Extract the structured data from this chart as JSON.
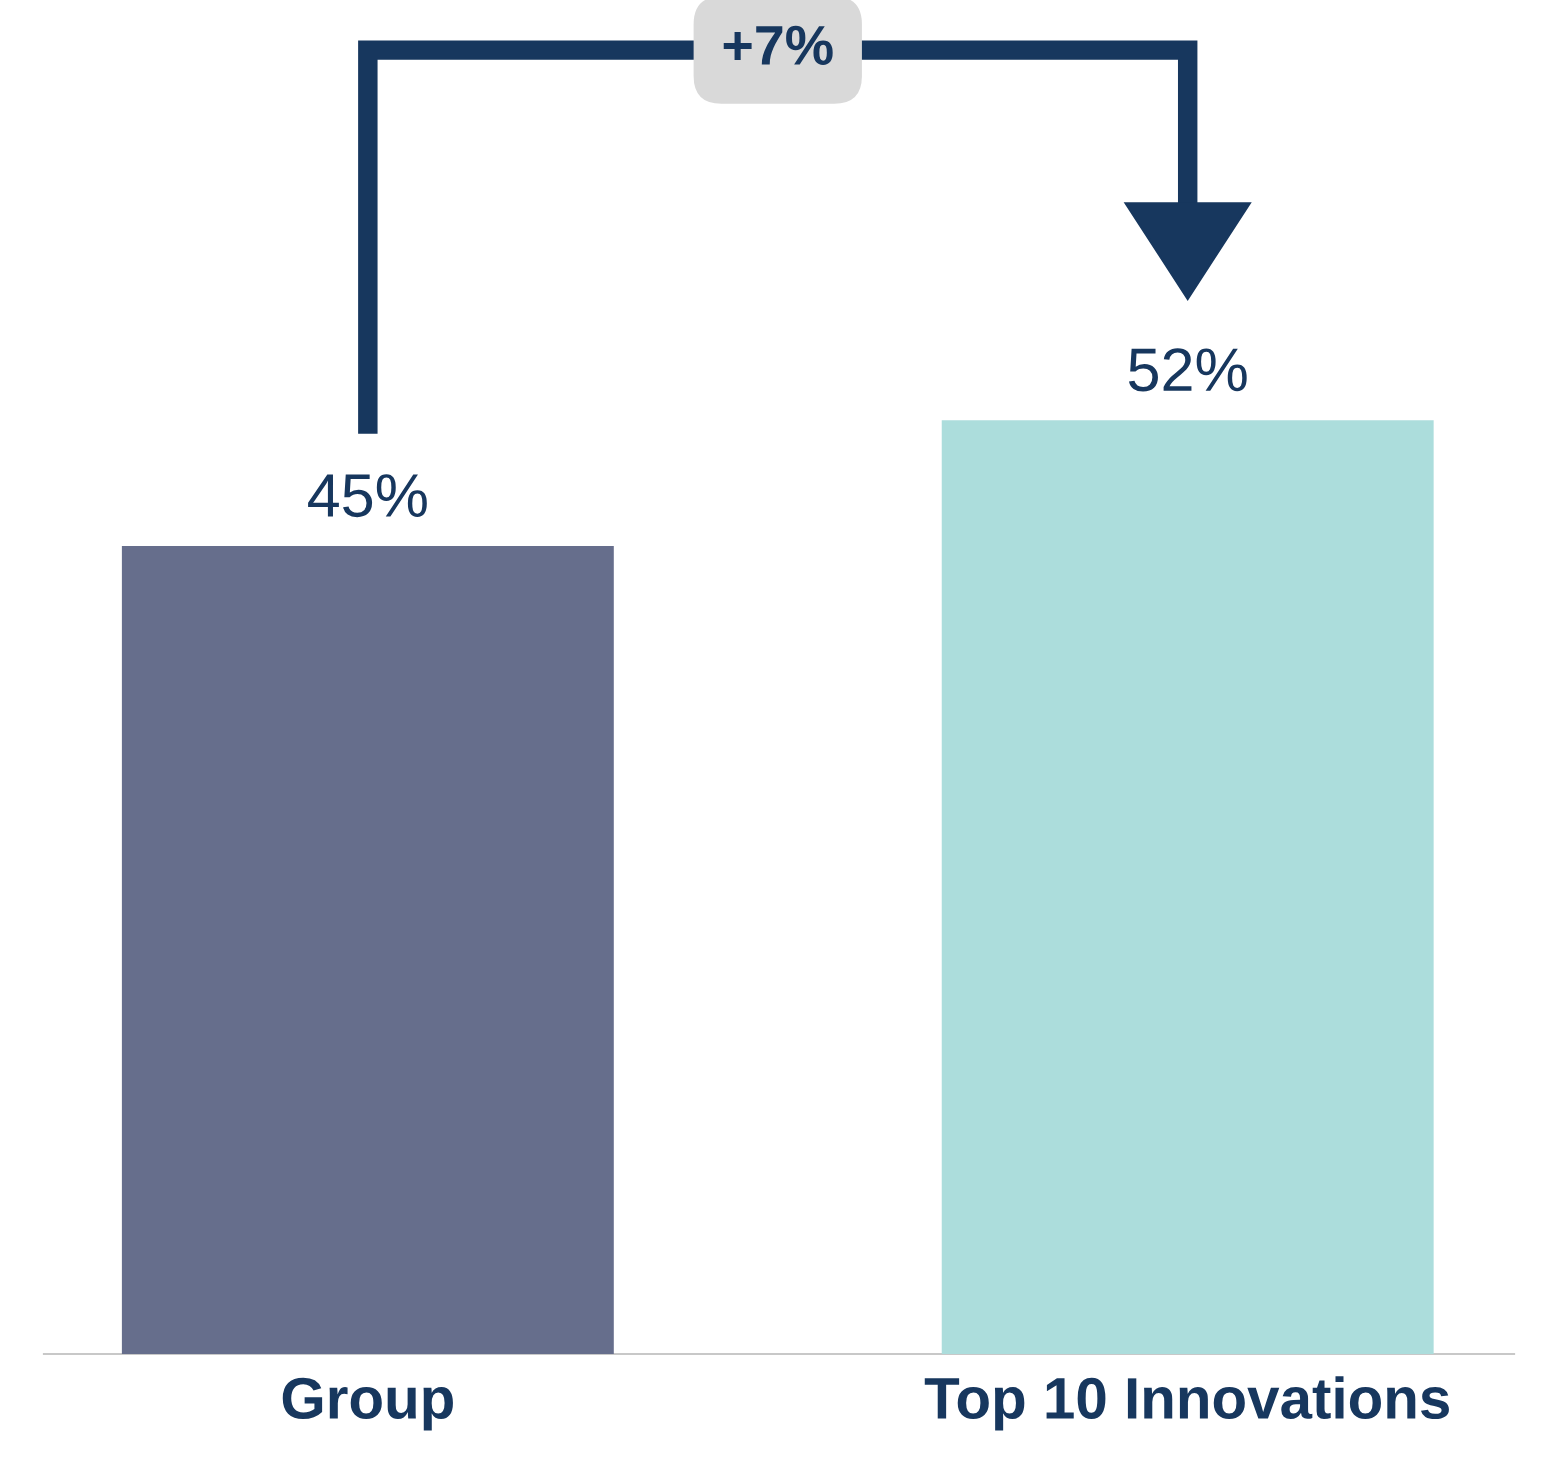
{
  "chart_data": {
    "type": "bar",
    "categories": [
      "Group",
      "Top 10 Innovations"
    ],
    "values": [
      45,
      52
    ],
    "colors": [
      "#666e8c",
      "#acdddc"
    ],
    "value_labels": [
      "45%",
      "52%"
    ],
    "tick_labels": "x",
    "legend": false,
    "annotations": [
      "+7%"
    ]
  }
}
